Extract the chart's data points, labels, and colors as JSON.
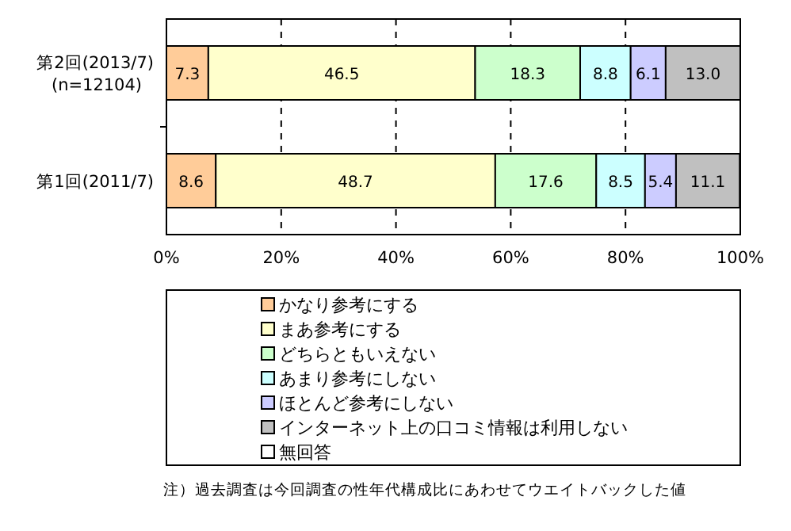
{
  "chart_data": {
    "type": "bar",
    "orientation": "horizontal",
    "stacked": true,
    "categories": [
      "第2回(2013/7)\n(n=12104)",
      "第1回(2011/7)"
    ],
    "xlim": [
      0,
      100
    ],
    "xticks": [
      {
        "value": 0,
        "label": "0%"
      },
      {
        "value": 20,
        "label": "20%"
      },
      {
        "value": 40,
        "label": "40%"
      },
      {
        "value": 60,
        "label": "60%"
      },
      {
        "value": 80,
        "label": "80%"
      },
      {
        "value": 100,
        "label": "100%"
      }
    ],
    "grid": "x",
    "legend": "bottom",
    "series": [
      {
        "name": "かなり参考にする",
        "color": "#ffcc99",
        "values": [
          7.3,
          8.6
        ],
        "value_labels": [
          "7.3",
          "8.6"
        ]
      },
      {
        "name": "まあ参考にする",
        "color": "#ffffcc",
        "values": [
          46.5,
          48.7
        ],
        "value_labels": [
          "46.5",
          "48.7"
        ]
      },
      {
        "name": "どちらともいえない",
        "color": "#ccffcc",
        "values": [
          18.3,
          17.6
        ],
        "value_labels": [
          "18.3",
          "17.6"
        ]
      },
      {
        "name": "あまり参考にしない",
        "color": "#ccffff",
        "values": [
          8.8,
          8.5
        ],
        "value_labels": [
          "8.8",
          "8.5"
        ]
      },
      {
        "name": "ほとんど参考にしない",
        "color": "#ccccff",
        "values": [
          6.1,
          5.4
        ],
        "value_labels": [
          "6.1",
          "5.4"
        ]
      },
      {
        "name": "インターネット上の口コミ情報は利用しない",
        "color": "#c0c0c0",
        "values": [
          13.0,
          11.1
        ],
        "value_labels": [
          "13.0",
          "11.1"
        ]
      },
      {
        "name": "無回答",
        "color": "#ffffff",
        "values": [
          0,
          null
        ],
        "value_labels": [
          null,
          null
        ]
      }
    ],
    "annotations": [
      "注）過去調査は今回調査の性年代構成比にあわせてウエイトバックした値"
    ]
  }
}
